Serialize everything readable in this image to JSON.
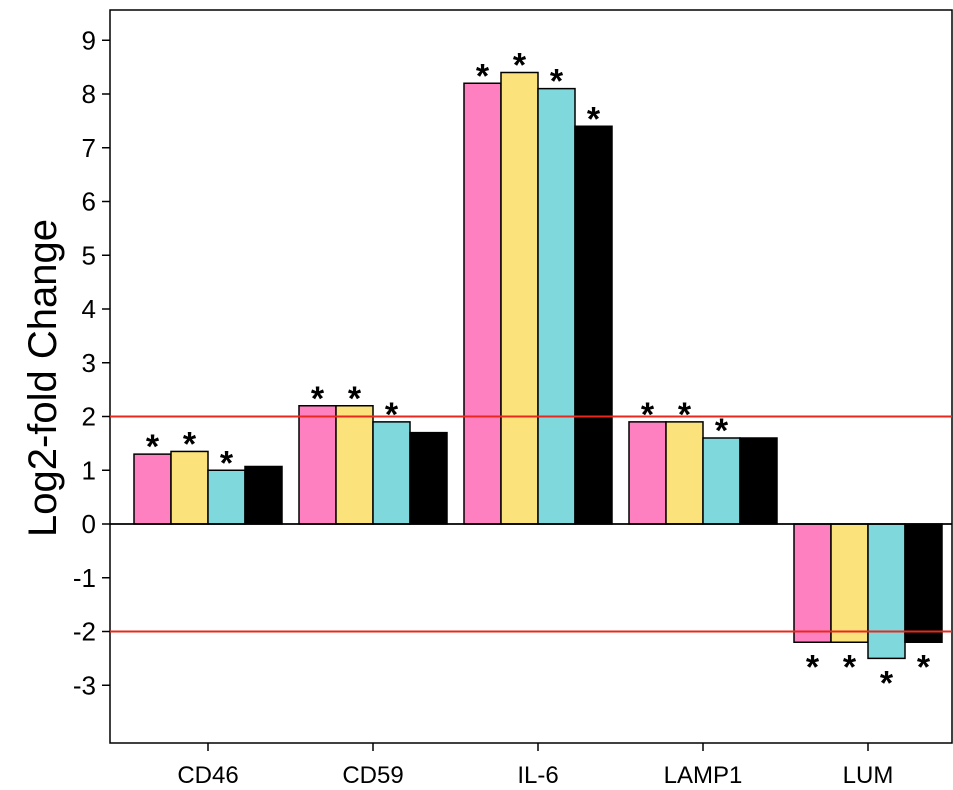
{
  "chart_data": {
    "type": "bar",
    "title": "",
    "xlabel": "",
    "ylabel": "Log2-fold Change",
    "ylim": [
      -4,
      9.5
    ],
    "yticks": [
      -3,
      -2,
      -1,
      0,
      1,
      2,
      3,
      4,
      5,
      6,
      7,
      8,
      9
    ],
    "categories": [
      "CD46",
      "CD59",
      "IL-6",
      "LAMP1",
      "LUM"
    ],
    "series": [
      {
        "color": "#ff80c0",
        "values": [
          1.3,
          2.2,
          8.2,
          1.9,
          -2.2
        ],
        "significant": [
          true,
          true,
          true,
          true,
          true
        ]
      },
      {
        "color": "#fce27a",
        "values": [
          1.35,
          2.2,
          8.4,
          1.9,
          -2.2
        ],
        "significant": [
          true,
          true,
          true,
          true,
          true
        ]
      },
      {
        "color": "#7fd9dc",
        "values": [
          1.0,
          1.9,
          8.1,
          1.6,
          -2.5
        ],
        "significant": [
          true,
          true,
          true,
          true,
          true
        ]
      },
      {
        "color": "#000000",
        "values": [
          1.07,
          1.7,
          7.4,
          1.6,
          -2.2
        ],
        "significant": [
          false,
          false,
          true,
          false,
          true
        ]
      }
    ],
    "significance_marker": "*",
    "reference_lines": [
      {
        "y": 2,
        "color": "#e8281e"
      },
      {
        "y": -2,
        "color": "#e8281e"
      }
    ],
    "grid": false,
    "legend": "none"
  }
}
